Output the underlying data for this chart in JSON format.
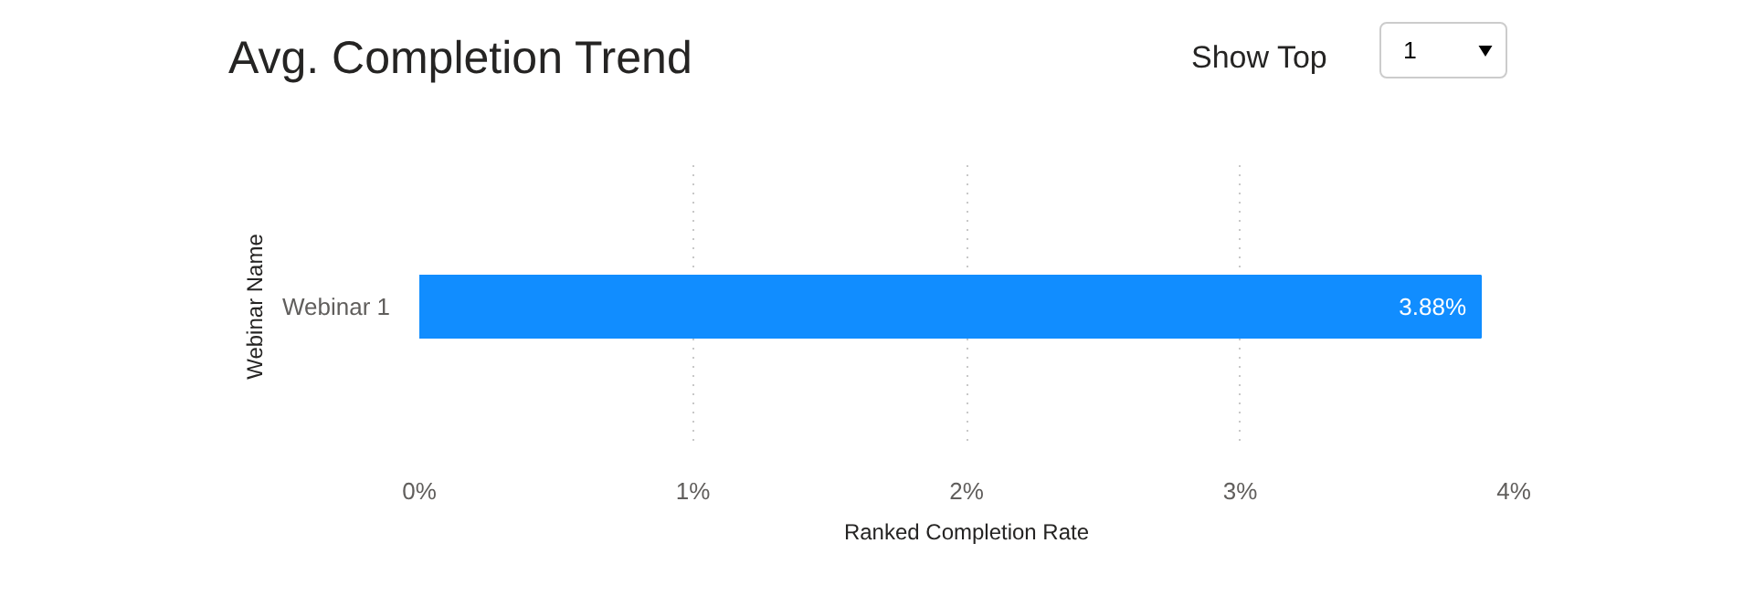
{
  "chart_data": {
    "type": "bar",
    "orientation": "horizontal",
    "title": "Avg. Completion Trend",
    "annotations": [
      "Show Top",
      "1"
    ],
    "categories": [
      "Webinar 1"
    ],
    "values": [
      3.88
    ],
    "color": "#118dff",
    "value_labels": [
      "3.88%"
    ],
    "xlabel": "Ranked Completion Rate",
    "ylabel": "Webinar Name",
    "xlim": [
      0,
      4
    ],
    "xticks": [
      {
        "value": 0,
        "label": "0%"
      },
      {
        "value": 1,
        "label": "1%"
      },
      {
        "value": 2,
        "label": "2%"
      },
      {
        "value": 3,
        "label": "3%"
      },
      {
        "value": 4,
        "label": "4%"
      }
    ],
    "grid": "x"
  }
}
